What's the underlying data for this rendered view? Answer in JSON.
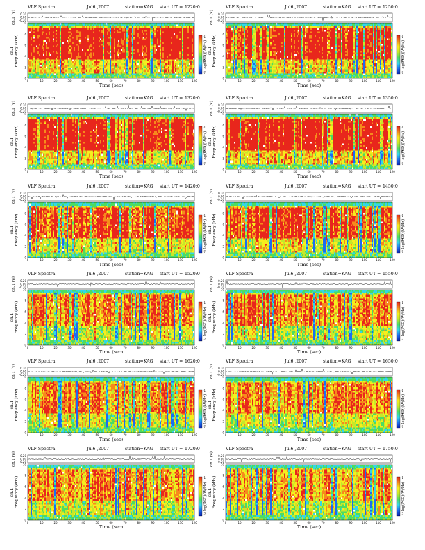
{
  "page_title": "VLF Spectra",
  "common": {
    "title_prefix": "VLF Spectra",
    "date": "Jul6 ,2007",
    "station": "station=KAG",
    "start_prefix": "start UT =",
    "ts_label": "ch.1 (V)",
    "ts_ticks": [
      "0.20",
      "0.00",
      "-0.20"
    ],
    "freq_label": "Frequency (kHz)",
    "freq_axis_name": "ch.1",
    "freq_ticks": [
      "0",
      "2",
      "4",
      "6",
      "8",
      "10"
    ],
    "x_label": "Time (sec)",
    "x_ticks": [
      "0",
      "10",
      "20",
      "30",
      "40",
      "50",
      "60",
      "70",
      "80",
      "90",
      "100",
      "110",
      "120"
    ],
    "cbar_label": "log(PSD)(V²/Hz)",
    "cbar_ticks": [
      "-1",
      "-3",
      "-5",
      "-7"
    ],
    "colormap": [
      "#0a1ea8",
      "#1d6cf0",
      "#33d6e8",
      "#4ddc61",
      "#c6e72b",
      "#f6ee1d",
      "#f68a1c",
      "#e8261c"
    ]
  },
  "panels": [
    {
      "start_ut": "1220:0"
    },
    {
      "start_ut": "1250:0"
    },
    {
      "start_ut": "1320:0"
    },
    {
      "start_ut": "1350:0"
    },
    {
      "start_ut": "1420:0"
    },
    {
      "start_ut": "1450:0"
    },
    {
      "start_ut": "1520:0"
    },
    {
      "start_ut": "1550:0"
    },
    {
      "start_ut": "1620:0"
    },
    {
      "start_ut": "1650:0"
    },
    {
      "start_ut": "1720:0"
    },
    {
      "start_ut": "1750:0"
    }
  ],
  "chart_data": [
    {
      "type": "heatmap",
      "title": "VLF Spectra  Jul6 ,2007  station=KAG  start UT =1220:0",
      "xlabel": "Time (sec)",
      "ylabel": "Frequency (kHz)",
      "xlim": [
        0,
        120
      ],
      "ylim": [
        0,
        10
      ],
      "colorbar": "log(PSD)(V²/Hz)",
      "intensity": 0.86
    },
    {
      "type": "heatmap",
      "title": "VLF Spectra  Jul6 ,2007  station=KAG  start UT =1250:0",
      "xlabel": "Time (sec)",
      "ylabel": "Frequency (kHz)",
      "xlim": [
        0,
        120
      ],
      "ylim": [
        0,
        10
      ],
      "colorbar": "log(PSD)(V²/Hz)",
      "intensity": 0.82
    },
    {
      "type": "heatmap",
      "title": "VLF Spectra  Jul6 ,2007  station=KAG  start UT =1320:0",
      "xlabel": "Time (sec)",
      "ylabel": "Frequency (kHz)",
      "xlim": [
        0,
        120
      ],
      "ylim": [
        0,
        10
      ],
      "colorbar": "log(PSD)(V²/Hz)",
      "intensity": 0.88
    },
    {
      "type": "heatmap",
      "title": "VLF Spectra  Jul6 ,2007  station=KAG  start UT =1350:0",
      "xlabel": "Time (sec)",
      "ylabel": "Frequency (kHz)",
      "xlim": [
        0,
        120
      ],
      "ylim": [
        0,
        10
      ],
      "colorbar": "log(PSD)(V²/Hz)",
      "intensity": 0.87
    },
    {
      "type": "heatmap",
      "title": "VLF Spectra  Jul6 ,2007  station=KAG  start UT =1420:0",
      "xlabel": "Time (sec)",
      "ylabel": "Frequency (kHz)",
      "xlim": [
        0,
        120
      ],
      "ylim": [
        0,
        10
      ],
      "colorbar": "log(PSD)(V²/Hz)",
      "intensity": 0.72
    },
    {
      "type": "heatmap",
      "title": "VLF Spectra  Jul6 ,2007  station=KAG  start UT =1450:0",
      "xlabel": "Time (sec)",
      "ylabel": "Frequency (kHz)",
      "xlim": [
        0,
        120
      ],
      "ylim": [
        0,
        10
      ],
      "colorbar": "log(PSD)(V²/Hz)",
      "intensity": 0.72
    },
    {
      "type": "heatmap",
      "title": "VLF Spectra  Jul6 ,2007  station=KAG  start UT =1520:0",
      "xlabel": "Time (sec)",
      "ylabel": "Frequency (kHz)",
      "xlim": [
        0,
        120
      ],
      "ylim": [
        0,
        10
      ],
      "colorbar": "log(PSD)(V²/Hz)",
      "intensity": 0.6
    },
    {
      "type": "heatmap",
      "title": "VLF Spectra  Jul6 ,2007  station=KAG  start UT =1550:0",
      "xlabel": "Time (sec)",
      "ylabel": "Frequency (kHz)",
      "xlim": [
        0,
        120
      ],
      "ylim": [
        0,
        10
      ],
      "colorbar": "log(PSD)(V²/Hz)",
      "intensity": 0.62
    },
    {
      "type": "heatmap",
      "title": "VLF Spectra  Jul6 ,2007  station=KAG  start UT =1620:0",
      "xlabel": "Time (sec)",
      "ylabel": "Frequency (kHz)",
      "xlim": [
        0,
        120
      ],
      "ylim": [
        0,
        10
      ],
      "colorbar": "log(PSD)(V²/Hz)",
      "intensity": 0.55
    },
    {
      "type": "heatmap",
      "title": "VLF Spectra  Jul6 ,2007  station=KAG  start UT =1650:0",
      "xlabel": "Time (sec)",
      "ylabel": "Frequency (kHz)",
      "xlim": [
        0,
        120
      ],
      "ylim": [
        0,
        10
      ],
      "colorbar": "log(PSD)(V²/Hz)",
      "intensity": 0.55
    },
    {
      "type": "heatmap",
      "title": "VLF Spectra  Jul6 ,2007  station=KAG  start UT =1720:0",
      "xlabel": "Time (sec)",
      "ylabel": "Frequency (kHz)",
      "xlim": [
        0,
        120
      ],
      "ylim": [
        0,
        10
      ],
      "colorbar": "log(PSD)(V²/Hz)",
      "intensity": 0.52
    },
    {
      "type": "heatmap",
      "title": "VLF Spectra  Jul6 ,2007  station=KAG  start UT =1750:0",
      "xlabel": "Time (sec)",
      "ylabel": "Frequency (kHz)",
      "xlim": [
        0,
        120
      ],
      "ylim": [
        0,
        10
      ],
      "colorbar": "log(PSD)(V²/Hz)",
      "intensity": 0.5
    }
  ]
}
